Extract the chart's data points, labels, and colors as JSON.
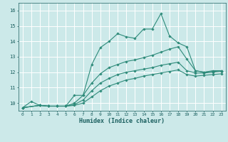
{
  "xlabel": "Humidex (Indice chaleur)",
  "ylabel": "",
  "background_color": "#cce9e9",
  "grid_color": "#ffffff",
  "line_color": "#2e8b7a",
  "xlim": [
    -0.5,
    23.5
  ],
  "ylim": [
    9.5,
    16.5
  ],
  "xticks": [
    0,
    1,
    2,
    3,
    4,
    5,
    6,
    7,
    8,
    9,
    10,
    11,
    12,
    13,
    14,
    15,
    16,
    17,
    18,
    19,
    20,
    21,
    22,
    23
  ],
  "yticks": [
    10,
    11,
    12,
    13,
    14,
    15,
    16
  ],
  "series": [
    {
      "x": [
        0,
        1,
        2,
        3,
        4,
        5,
        6,
        7,
        8,
        9,
        10,
        11,
        12,
        13,
        14,
        15,
        16,
        17,
        18,
        19,
        20,
        21,
        22,
        23
      ],
      "y": [
        9.7,
        10.1,
        9.85,
        9.8,
        9.8,
        9.8,
        10.5,
        10.5,
        12.5,
        13.6,
        14.0,
        14.5,
        14.3,
        14.2,
        14.8,
        14.8,
        15.8,
        14.35,
        13.9,
        13.65,
        12.1,
        12.0,
        12.1,
        12.1
      ]
    },
    {
      "x": [
        0,
        2,
        3,
        4,
        5,
        6,
        7,
        8,
        9,
        10,
        11,
        12,
        13,
        14,
        15,
        16,
        17,
        18,
        19,
        20,
        21,
        22,
        23
      ],
      "y": [
        9.7,
        9.85,
        9.8,
        9.8,
        9.8,
        10.0,
        10.5,
        11.3,
        11.9,
        12.3,
        12.5,
        12.7,
        12.8,
        12.95,
        13.1,
        13.3,
        13.5,
        13.65,
        12.85,
        12.1,
        12.0,
        12.05,
        12.1
      ]
    },
    {
      "x": [
        0,
        2,
        3,
        4,
        5,
        6,
        7,
        8,
        9,
        10,
        11,
        12,
        13,
        14,
        15,
        16,
        17,
        18,
        19,
        20,
        21,
        22,
        23
      ],
      "y": [
        9.7,
        9.85,
        9.8,
        9.8,
        9.8,
        9.9,
        10.2,
        10.8,
        11.3,
        11.6,
        11.85,
        12.0,
        12.1,
        12.2,
        12.3,
        12.45,
        12.55,
        12.65,
        12.1,
        11.95,
        11.95,
        12.0,
        12.05
      ]
    },
    {
      "x": [
        0,
        2,
        3,
        4,
        5,
        6,
        7,
        8,
        9,
        10,
        11,
        12,
        13,
        14,
        15,
        16,
        17,
        18,
        19,
        20,
        21,
        22,
        23
      ],
      "y": [
        9.7,
        9.85,
        9.8,
        9.8,
        9.8,
        9.85,
        10.0,
        10.4,
        10.8,
        11.1,
        11.3,
        11.5,
        11.6,
        11.75,
        11.85,
        11.95,
        12.05,
        12.15,
        11.85,
        11.75,
        11.8,
        11.85,
        11.9
      ]
    }
  ]
}
